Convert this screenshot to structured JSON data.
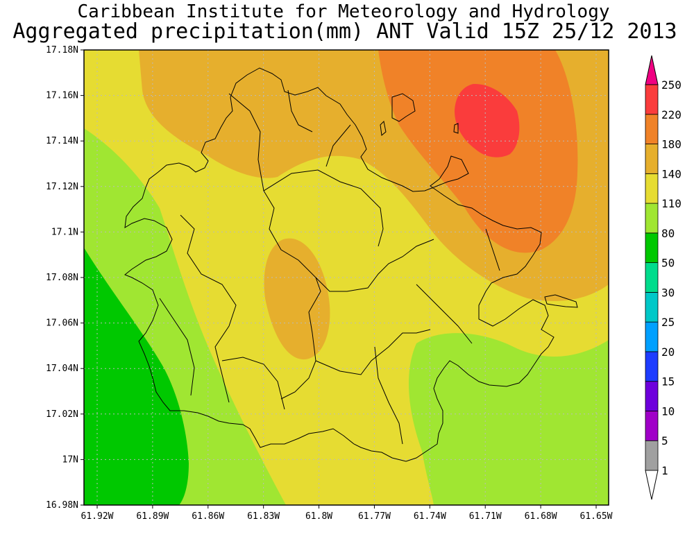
{
  "header": {
    "title_line1": "Caribbean Institute for Meteorology and Hydrology",
    "title_line2": "Aggregated precipitation(mm) ANT Valid 15Z 25/12 2013"
  },
  "axes": {
    "y_ticks": [
      "17.18N",
      "17.16N",
      "17.14N",
      "17.12N",
      "17.1N",
      "17.08N",
      "17.06N",
      "17.04N",
      "17.02N",
      "17N",
      "16.98N"
    ],
    "x_ticks": [
      "61.92W",
      "61.89W",
      "61.86W",
      "61.83W",
      "61.8W",
      "61.77W",
      "61.74W",
      "61.71W",
      "61.68W",
      "61.65W"
    ]
  },
  "colorbar": {
    "levels": [
      "1",
      "5",
      "10",
      "15",
      "20",
      "25",
      "30",
      "50",
      "80",
      "110",
      "140",
      "180",
      "220",
      "250"
    ],
    "colors": [
      "#ffffff",
      "#a0a0a0",
      "#a000c8",
      "#6e00dc",
      "#1e3cff",
      "#00a0ff",
      "#00c8c8",
      "#00dc8c",
      "#00c800",
      "#a0e632",
      "#e6dc32",
      "#e6af2d",
      "#f08228",
      "#fa3c3c",
      "#f00082"
    ]
  },
  "field_colors": {
    "band_80_110": "#a0e632",
    "band_50_80": "#00c800",
    "band_110_140": "#e6dc32",
    "band_140_180": "#e6af2d",
    "band_180_220": "#f08228",
    "band_220_250": "#fa3c3c"
  }
}
